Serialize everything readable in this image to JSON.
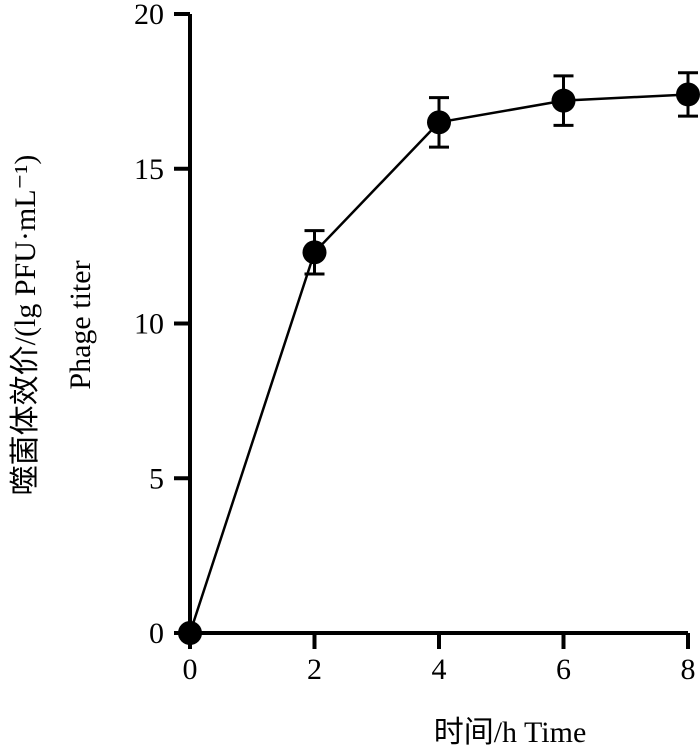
{
  "chart_data": {
    "type": "line",
    "x": [
      0,
      2,
      4,
      6,
      8
    ],
    "series": [
      {
        "values": [
          0,
          12.3,
          16.5,
          17.2,
          17.4
        ],
        "error": [
          0,
          0.7,
          0.8,
          0.8,
          0.7
        ]
      }
    ],
    "xlabel": "时间/h  Time",
    "ylabel_line1": "噬菌体效价/(lg PFU·mL⁻¹)",
    "ylabel_line2": "Phage titer",
    "xlim": [
      0,
      8
    ],
    "ylim": [
      0,
      20
    ],
    "xticks": [
      "0",
      "2",
      "4",
      "6",
      "8"
    ],
    "yticks": [
      "0",
      "5",
      "10",
      "15",
      "20"
    ],
    "grid": false,
    "colors": {
      "line": "#000000",
      "marker": "#000000",
      "axis": "#000000"
    }
  }
}
